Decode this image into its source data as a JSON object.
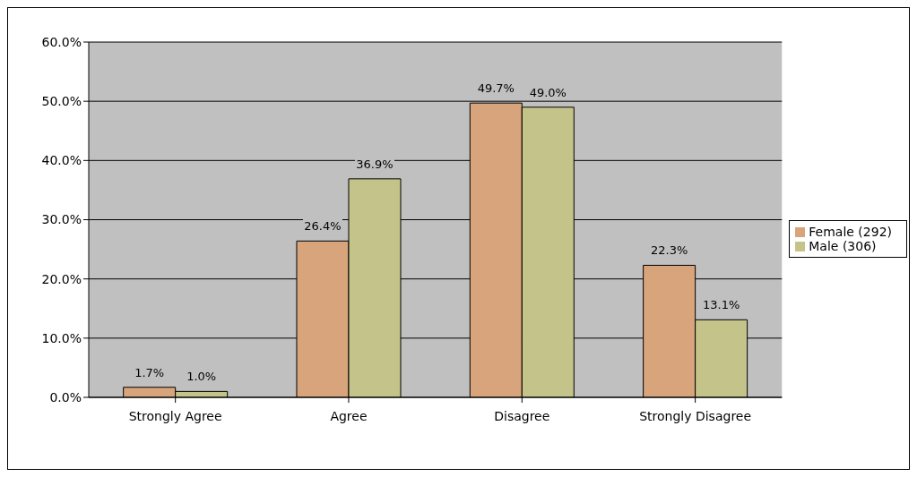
{
  "chart_data": {
    "type": "bar",
    "categories": [
      "Strongly Agree",
      "Agree",
      "Disagree",
      "Strongly Disagree"
    ],
    "series": [
      {
        "name": "Female (292)",
        "color": "#d8a47c",
        "values": [
          1.7,
          26.4,
          49.7,
          22.3
        ],
        "value_labels": [
          "1.7%",
          "26.4%",
          "49.7%",
          "22.3%"
        ]
      },
      {
        "name": "Male (306)",
        "color": "#c4c48a",
        "values": [
          1.0,
          36.9,
          49.0,
          13.1
        ],
        "value_labels": [
          "1.0%",
          "36.9%",
          "49.0%",
          "13.1%"
        ]
      }
    ],
    "ylim": [
      0,
      60
    ],
    "yticks": [
      {
        "value": 0,
        "label": "0.0%"
      },
      {
        "value": 10,
        "label": "10.0%"
      },
      {
        "value": 20,
        "label": "20.0%"
      },
      {
        "value": 30,
        "label": "30.0%"
      },
      {
        "value": 40,
        "label": "40.0%"
      },
      {
        "value": 50,
        "label": "50.0%"
      },
      {
        "value": 60,
        "label": "60.0%"
      }
    ],
    "grid": "y",
    "legend": "right"
  }
}
